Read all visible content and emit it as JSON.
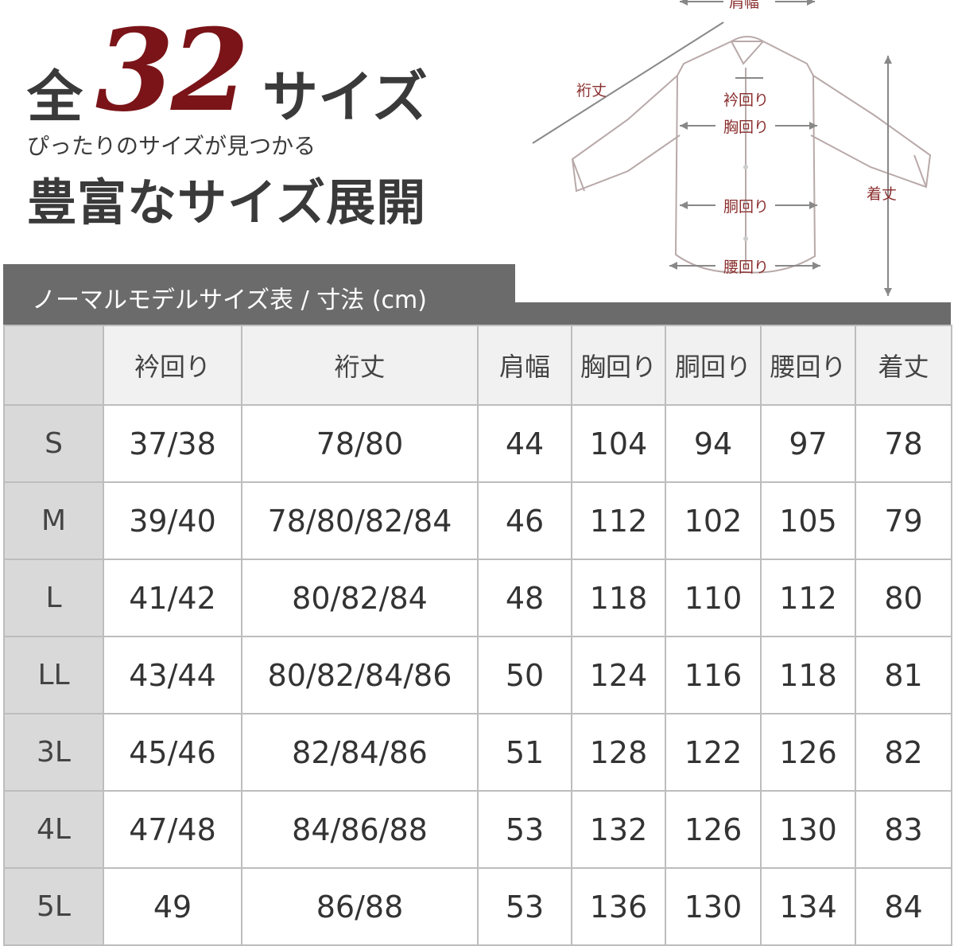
{
  "hero": {
    "zen": "全",
    "number": "32",
    "size_word": "サイズ",
    "subtitle": "ぴったりのサイズが見つかる",
    "headline": "豊富なサイズ展開"
  },
  "diagram": {
    "labels": {
      "katahaba": "肩幅",
      "yukitake": "裄丈",
      "eri": "衿回り",
      "mune": "胸回り",
      "do": "胴回り",
      "koshi": "腰回り",
      "kitake": "着丈"
    },
    "label_color": "#8a2e2e"
  },
  "table": {
    "title": "ノーマルモデルサイズ表 / 寸法 (cm)",
    "header_color": "#6b6b6b",
    "columns": [
      "",
      "衿回り",
      "裄丈",
      "肩幅",
      "胸回り",
      "胴回り",
      "腰回り",
      "着丈"
    ],
    "rows": [
      {
        "size": "S",
        "cells": [
          "37/38",
          "78/80",
          "44",
          "104",
          "94",
          "97",
          "78"
        ]
      },
      {
        "size": "M",
        "cells": [
          "39/40",
          "78/80/82/84",
          "46",
          "112",
          "102",
          "105",
          "79"
        ]
      },
      {
        "size": "L",
        "cells": [
          "41/42",
          "80/82/84",
          "48",
          "118",
          "110",
          "112",
          "80"
        ]
      },
      {
        "size": "LL",
        "cells": [
          "43/44",
          "80/82/84/86",
          "50",
          "124",
          "116",
          "118",
          "81"
        ]
      },
      {
        "size": "3L",
        "cells": [
          "45/46",
          "82/84/86",
          "51",
          "128",
          "122",
          "126",
          "82"
        ]
      },
      {
        "size": "4L",
        "cells": [
          "47/48",
          "84/86/88",
          "53",
          "132",
          "126",
          "130",
          "83"
        ]
      },
      {
        "size": "5L",
        "cells": [
          "49",
          "86/88",
          "53",
          "136",
          "130",
          "134",
          "84"
        ]
      }
    ]
  }
}
